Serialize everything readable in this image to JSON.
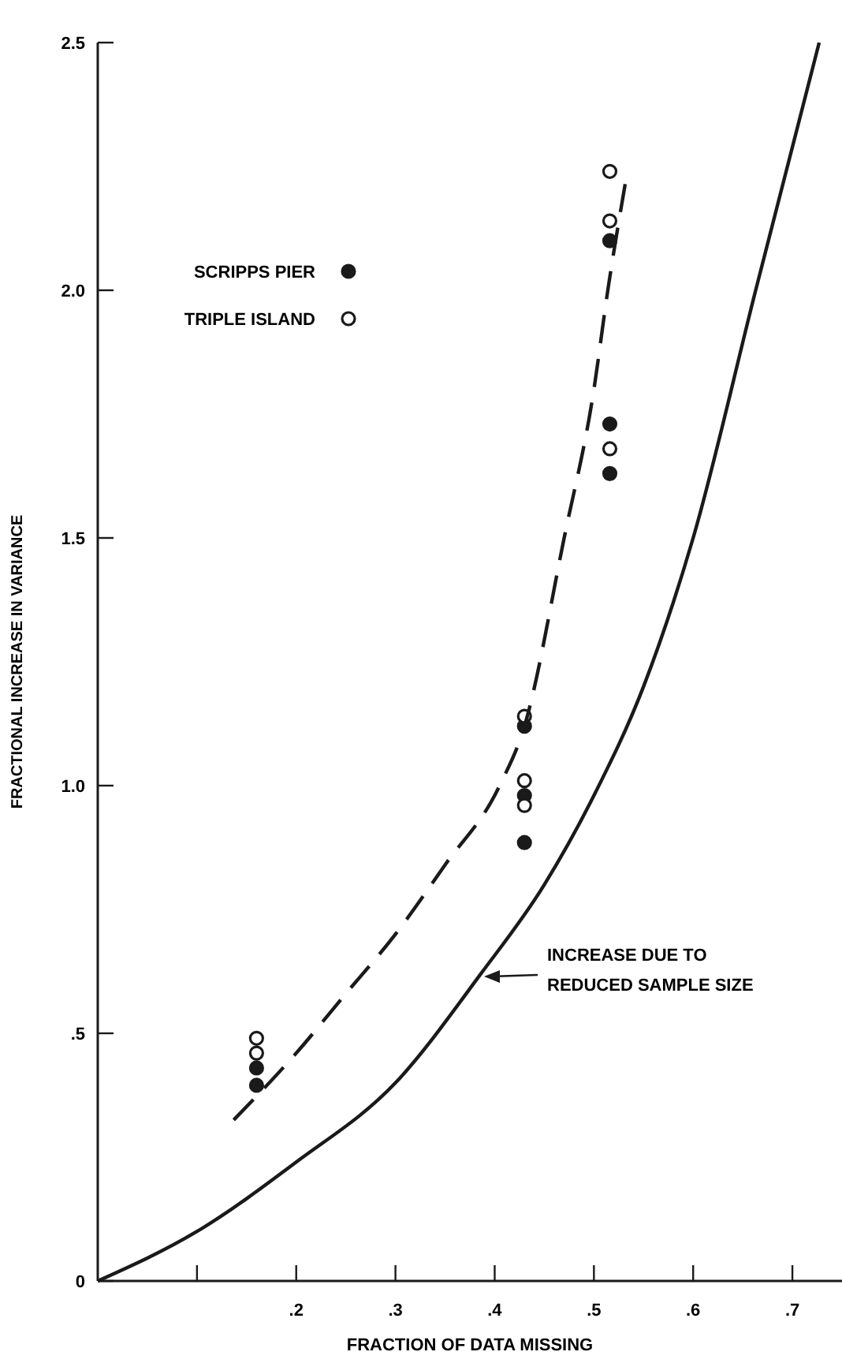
{
  "chart_data": {
    "type": "scatter",
    "xlabel": "FRACTION OF DATA MISSING",
    "ylabel": "FRACTIONAL INCREASE IN VARIANCE",
    "xlim": [
      0,
      0.75
    ],
    "ylim": [
      0,
      2.5
    ],
    "xticks": [
      {
        "value": 0.1,
        "label": null
      },
      {
        "value": 0.2,
        "label": ".2"
      },
      {
        "value": 0.3,
        "label": ".3"
      },
      {
        "value": 0.4,
        "label": ".4"
      },
      {
        "value": 0.5,
        "label": ".5"
      },
      {
        "value": 0.6,
        "label": ".6"
      },
      {
        "value": 0.7,
        "label": ".7"
      }
    ],
    "yticks": [
      0,
      {
        "value": 0.5,
        "label": ".5"
      },
      {
        "value": 1,
        "label": "1.0"
      },
      1.5,
      {
        "value": 2,
        "label": "2.0"
      },
      2.5
    ],
    "legend": "top left",
    "grid": false,
    "series": [
      {
        "name": "SCRIPPS PIER",
        "marker": "circle",
        "color": "#1a1a1a",
        "x": [
          0.16,
          0.16,
          0.43,
          0.43,
          0.43,
          0.516,
          0.516,
          0.516
        ],
        "values": [
          0.43,
          0.395,
          1.12,
          0.98,
          0.885,
          2.1,
          1.73,
          1.63
        ]
      },
      {
        "name": "TRIPLE ISLAND",
        "marker": "circle",
        "color": "#ffffff",
        "x": [
          0.16,
          0.16,
          0.43,
          0.43,
          0.43,
          0.516,
          0.516,
          0.516
        ],
        "values": [
          0.49,
          0.46,
          1.14,
          1.01,
          0.96,
          2.24,
          2.14,
          1.68
        ]
      },
      {
        "type": "line",
        "marker": "none",
        "line_style": "dashed",
        "color": "#1a1a1a",
        "x": [
          0.137,
          0.2,
          0.25,
          0.3,
          0.35,
          0.405,
          0.43,
          0.47,
          0.5,
          0.514,
          0.532
        ],
        "values": [
          0.325,
          0.46,
          0.58,
          0.7,
          0.84,
          1.0,
          1.12,
          1.5,
          1.8,
          2.0,
          2.22
        ]
      },
      {
        "type": "line",
        "marker": "none",
        "line_style": "solid",
        "color": "#1a1a1a",
        "x": [
          0,
          0.1,
          0.2,
          0.3,
          0.386,
          0.45,
          0.5,
          0.55,
          0.6,
          0.663,
          0.727
        ],
        "values": [
          0,
          0.1,
          0.24,
          0.4,
          0.62,
          0.8,
          0.98,
          1.2,
          1.5,
          2.0,
          2.5
        ]
      }
    ],
    "annotations": [
      "INCREASE DUE TO\nREDUCED SAMPLE SIZE"
    ]
  }
}
